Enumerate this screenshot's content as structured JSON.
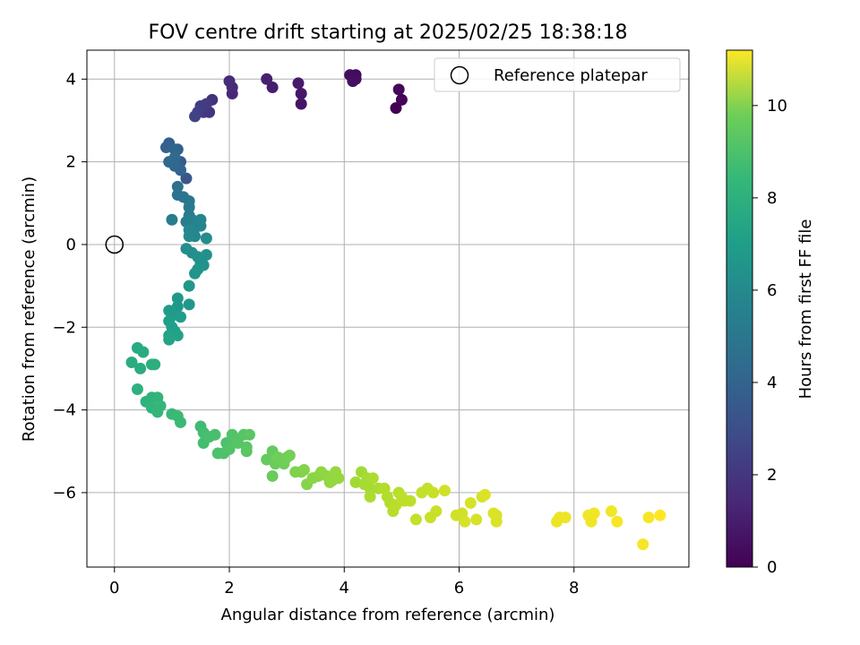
{
  "chart_data": {
    "type": "scatter",
    "title": "FOV centre drift starting at 2025/02/25 18:38:18",
    "xlabel": "Angular distance from reference (arcmin)",
    "ylabel": "Rotation from reference (arcmin)",
    "xlim": [
      -0.48,
      10.0
    ],
    "ylim": [
      -7.8,
      4.7
    ],
    "xticks": [
      0,
      2,
      4,
      6,
      8
    ],
    "yticks": [
      4,
      2,
      0,
      -2,
      -4,
      -6
    ],
    "grid": true,
    "legend": {
      "position": "top-right",
      "entries": [
        "Reference platepar"
      ]
    },
    "reference_point": {
      "x": 0,
      "y": 0,
      "label": "Reference platepar"
    },
    "colorbar": {
      "label": "Hours from first FF file",
      "range": [
        0,
        11.2
      ],
      "ticks": [
        0,
        2,
        4,
        6,
        8,
        10
      ],
      "colormap": "viridis"
    },
    "points": [
      [
        4.9,
        3.3,
        0.0
      ],
      [
        5.0,
        3.5,
        0.1
      ],
      [
        4.95,
        3.75,
        0.2
      ],
      [
        4.2,
        4.1,
        0.3
      ],
      [
        4.1,
        4.1,
        0.35
      ],
      [
        4.2,
        4.0,
        0.4
      ],
      [
        4.15,
        3.95,
        0.45
      ],
      [
        3.25,
        3.4,
        0.6
      ],
      [
        3.25,
        3.65,
        0.7
      ],
      [
        3.2,
        3.9,
        0.8
      ],
      [
        2.75,
        3.8,
        0.9
      ],
      [
        2.65,
        4.0,
        1.0
      ],
      [
        2.05,
        3.65,
        1.2
      ],
      [
        2.05,
        3.8,
        1.3
      ],
      [
        2.0,
        3.95,
        1.4
      ],
      [
        1.7,
        3.5,
        1.6
      ],
      [
        1.65,
        3.2,
        1.7
      ],
      [
        1.55,
        3.2,
        1.8
      ],
      [
        1.6,
        3.4,
        1.9
      ],
      [
        1.5,
        3.35,
        2.0
      ],
      [
        1.45,
        3.2,
        2.1
      ],
      [
        1.4,
        3.1,
        2.2
      ],
      [
        1.25,
        1.6,
        3.0
      ],
      [
        1.15,
        2.0,
        3.2
      ],
      [
        1.1,
        2.3,
        3.3
      ],
      [
        0.95,
        2.45,
        3.4
      ],
      [
        0.9,
        2.35,
        3.5
      ],
      [
        1.05,
        2.3,
        3.6
      ],
      [
        1.15,
        1.8,
        3.6
      ],
      [
        1.05,
        1.9,
        3.7
      ],
      [
        0.95,
        2.0,
        3.8
      ],
      [
        1.05,
        2.1,
        3.9
      ],
      [
        1.1,
        1.4,
        4.1
      ],
      [
        1.1,
        1.2,
        4.2
      ],
      [
        1.2,
        1.15,
        4.3
      ],
      [
        1.3,
        1.05,
        4.4
      ],
      [
        1.3,
        0.9,
        4.5
      ],
      [
        1.3,
        0.7,
        4.6
      ],
      [
        1.0,
        0.6,
        4.7
      ],
      [
        1.25,
        0.55,
        4.8
      ],
      [
        1.35,
        0.6,
        4.9
      ],
      [
        1.45,
        0.55,
        5.0
      ],
      [
        1.5,
        0.45,
        5.0
      ],
      [
        1.5,
        0.6,
        5.1
      ],
      [
        1.4,
        0.4,
        5.1
      ],
      [
        1.3,
        0.35,
        5.2
      ],
      [
        1.4,
        0.2,
        5.2
      ],
      [
        1.3,
        0.2,
        5.3
      ],
      [
        1.6,
        0.15,
        5.4
      ],
      [
        1.25,
        -0.1,
        5.5
      ],
      [
        1.35,
        -0.2,
        5.5
      ],
      [
        1.6,
        -0.25,
        5.6
      ],
      [
        1.45,
        -0.3,
        5.6
      ],
      [
        1.5,
        -0.45,
        5.7
      ],
      [
        1.55,
        -0.5,
        5.7
      ],
      [
        1.45,
        -0.6,
        5.8
      ],
      [
        1.4,
        -0.7,
        5.8
      ],
      [
        1.3,
        -1.0,
        5.9
      ],
      [
        1.3,
        -1.45,
        5.9
      ],
      [
        1.1,
        -1.3,
        6.0
      ],
      [
        1.1,
        -1.5,
        6.0
      ],
      [
        1.05,
        -1.7,
        6.1
      ],
      [
        0.95,
        -1.6,
        6.1
      ],
      [
        1.15,
        -1.75,
        6.2
      ],
      [
        0.95,
        -1.85,
        6.2
      ],
      [
        1.0,
        -2.0,
        6.3
      ],
      [
        1.05,
        -2.1,
        6.3
      ],
      [
        1.1,
        -2.2,
        6.4
      ],
      [
        0.95,
        -2.2,
        6.4
      ],
      [
        0.95,
        -2.3,
        6.5
      ],
      [
        0.4,
        -2.5,
        6.8
      ],
      [
        0.5,
        -2.6,
        6.8
      ],
      [
        0.3,
        -2.85,
        6.9
      ],
      [
        0.45,
        -3.0,
        6.9
      ],
      [
        0.65,
        -2.9,
        7.0
      ],
      [
        0.7,
        -2.9,
        7.0
      ],
      [
        0.4,
        -3.5,
        7.1
      ],
      [
        0.55,
        -3.8,
        7.2
      ],
      [
        0.65,
        -3.7,
        7.2
      ],
      [
        0.75,
        -3.7,
        7.3
      ],
      [
        0.65,
        -3.95,
        7.3
      ],
      [
        0.75,
        -4.05,
        7.4
      ],
      [
        0.8,
        -3.9,
        7.4
      ],
      [
        1.0,
        -4.1,
        7.5
      ],
      [
        1.1,
        -4.15,
        7.6
      ],
      [
        1.15,
        -4.3,
        7.6
      ],
      [
        1.5,
        -4.4,
        7.7
      ],
      [
        1.55,
        -4.55,
        7.8
      ],
      [
        1.55,
        -4.8,
        7.8
      ],
      [
        1.65,
        -4.65,
        7.9
      ],
      [
        1.75,
        -4.6,
        7.9
      ],
      [
        1.8,
        -5.05,
        8.0
      ],
      [
        1.9,
        -5.05,
        8.0
      ],
      [
        1.95,
        -4.8,
        8.0
      ],
      [
        2.0,
        -4.95,
        8.1
      ],
      [
        2.05,
        -4.6,
        8.1
      ],
      [
        2.1,
        -4.7,
        8.1
      ],
      [
        2.15,
        -4.8,
        8.2
      ],
      [
        2.25,
        -4.6,
        8.2
      ],
      [
        2.3,
        -4.9,
        8.2
      ],
      [
        2.35,
        -4.6,
        8.3
      ],
      [
        2.3,
        -5.0,
        8.3
      ],
      [
        2.65,
        -5.2,
        8.5
      ],
      [
        2.75,
        -5.0,
        8.5
      ],
      [
        2.75,
        -5.6,
        8.6
      ],
      [
        2.8,
        -5.3,
        8.6
      ],
      [
        2.85,
        -5.15,
        8.7
      ],
      [
        2.95,
        -5.3,
        8.7
      ],
      [
        3.0,
        -5.15,
        8.8
      ],
      [
        3.05,
        -5.1,
        8.8
      ],
      [
        3.15,
        -5.5,
        9.0
      ],
      [
        3.25,
        -5.5,
        9.0
      ],
      [
        3.3,
        -5.45,
        9.1
      ],
      [
        3.35,
        -5.8,
        9.1
      ],
      [
        3.45,
        -5.65,
        9.2
      ],
      [
        3.55,
        -5.6,
        9.2
      ],
      [
        3.6,
        -5.5,
        9.3
      ],
      [
        3.7,
        -5.6,
        9.3
      ],
      [
        3.75,
        -5.75,
        9.3
      ],
      [
        3.8,
        -5.7,
        9.4
      ],
      [
        3.85,
        -5.5,
        9.4
      ],
      [
        3.9,
        -5.65,
        9.4
      ],
      [
        4.2,
        -5.75,
        9.6
      ],
      [
        4.3,
        -5.5,
        9.6
      ],
      [
        4.35,
        -5.8,
        9.7
      ],
      [
        4.4,
        -5.65,
        9.7
      ],
      [
        4.45,
        -5.9,
        9.7
      ],
      [
        4.45,
        -6.1,
        9.8
      ],
      [
        4.5,
        -5.65,
        9.8
      ],
      [
        4.6,
        -5.9,
        9.8
      ],
      [
        4.7,
        -5.9,
        9.9
      ],
      [
        4.75,
        -6.1,
        9.9
      ],
      [
        4.8,
        -6.25,
        9.9
      ],
      [
        4.85,
        -6.45,
        10.0
      ],
      [
        4.9,
        -6.3,
        10.0
      ],
      [
        4.95,
        -6.0,
        10.0
      ],
      [
        5.0,
        -6.1,
        10.1
      ],
      [
        5.05,
        -6.2,
        10.1
      ],
      [
        5.15,
        -6.2,
        10.1
      ],
      [
        5.25,
        -6.65,
        10.2
      ],
      [
        5.35,
        -6.0,
        10.2
      ],
      [
        5.45,
        -5.9,
        10.2
      ],
      [
        5.5,
        -6.6,
        10.3
      ],
      [
        5.55,
        -6.0,
        10.3
      ],
      [
        5.6,
        -6.45,
        10.3
      ],
      [
        5.75,
        -5.95,
        10.4
      ],
      [
        5.95,
        -6.55,
        10.4
      ],
      [
        6.05,
        -6.5,
        10.4
      ],
      [
        6.1,
        -6.7,
        10.5
      ],
      [
        6.2,
        -6.25,
        10.5
      ],
      [
        6.3,
        -6.65,
        10.5
      ],
      [
        6.4,
        -6.1,
        10.5
      ],
      [
        6.45,
        -6.05,
        10.6
      ],
      [
        6.6,
        -6.5,
        10.6
      ],
      [
        6.65,
        -6.7,
        10.6
      ],
      [
        6.65,
        -6.55,
        10.6
      ],
      [
        7.7,
        -6.7,
        10.9
      ],
      [
        7.75,
        -6.6,
        10.9
      ],
      [
        7.85,
        -6.6,
        10.9
      ],
      [
        8.25,
        -6.55,
        11.0
      ],
      [
        8.3,
        -6.7,
        11.0
      ],
      [
        8.35,
        -6.5,
        11.0
      ],
      [
        8.65,
        -6.45,
        11.0
      ],
      [
        8.75,
        -6.7,
        11.1
      ],
      [
        9.2,
        -7.25,
        11.1
      ],
      [
        9.3,
        -6.6,
        11.1
      ],
      [
        9.5,
        -6.55,
        11.2
      ]
    ]
  }
}
